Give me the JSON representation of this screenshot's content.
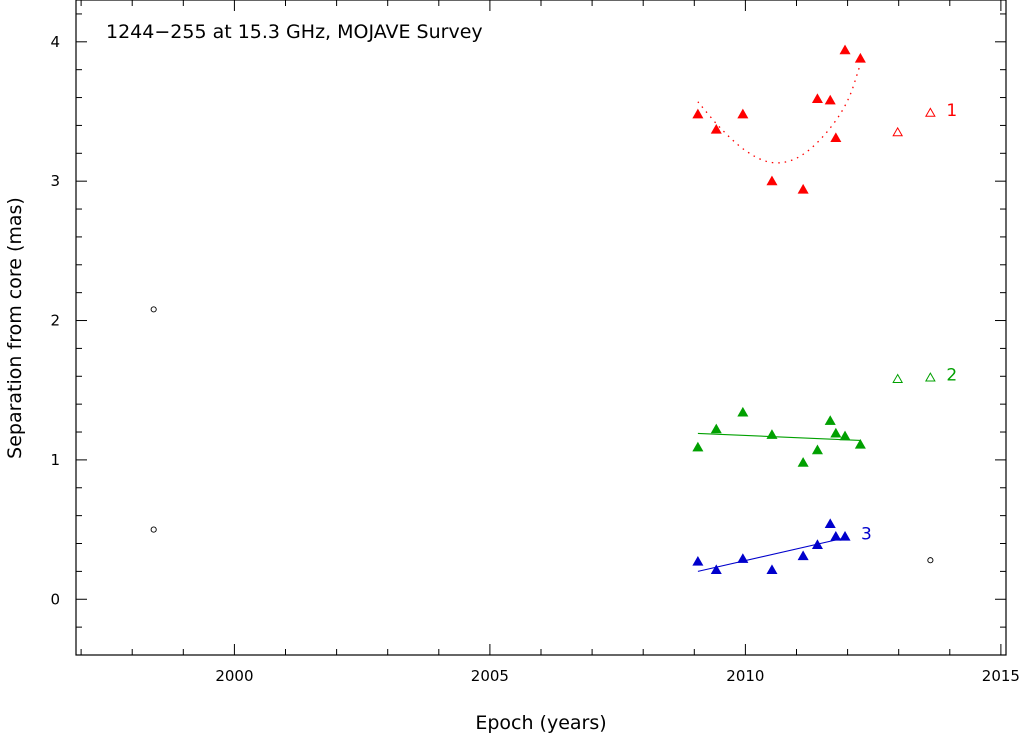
{
  "chart_data": {
    "type": "scatter",
    "title": "1244−255 at 15.3 GHz, MOJAVE Survey",
    "xlabel": "Epoch (years)",
    "ylabel": "Separation from core (mas)",
    "xlim": [
      1996.9,
      2015.1
    ],
    "ylim": [
      -0.4,
      4.3
    ],
    "x_ticks": [
      "2000",
      "2005",
      "2010",
      "2015"
    ],
    "y_ticks": [
      "0",
      "1",
      "2",
      "3",
      "4"
    ],
    "grid": false,
    "series": [
      {
        "name": "1",
        "color": "#ff0000",
        "marker": "filled-triangle",
        "points": [
          [
            2009.07,
            3.48
          ],
          [
            2009.43,
            3.37
          ],
          [
            2009.95,
            3.48
          ],
          [
            2010.52,
            3.0
          ],
          [
            2011.13,
            2.94
          ],
          [
            2011.41,
            3.59
          ],
          [
            2011.66,
            3.58
          ],
          [
            2011.77,
            3.31
          ],
          [
            2011.95,
            3.94
          ],
          [
            2012.25,
            3.88
          ]
        ],
        "open_points": [
          [
            2012.98,
            3.35
          ],
          [
            2013.62,
            3.49
          ]
        ],
        "fit": "quadratic",
        "fit_points": [
          [
            2009.07,
            3.57
          ],
          [
            2009.5,
            3.38
          ],
          [
            2010.0,
            3.21
          ],
          [
            2010.5,
            3.12
          ],
          [
            2011.0,
            3.15
          ],
          [
            2011.5,
            3.3
          ],
          [
            2012.0,
            3.55
          ],
          [
            2012.25,
            3.84
          ]
        ]
      },
      {
        "name": "2",
        "color": "#00a000",
        "marker": "filled-triangle",
        "points": [
          [
            2009.07,
            1.09
          ],
          [
            2009.43,
            1.22
          ],
          [
            2009.95,
            1.34
          ],
          [
            2010.52,
            1.18
          ],
          [
            2011.13,
            0.98
          ],
          [
            2011.41,
            1.07
          ],
          [
            2011.66,
            1.28
          ],
          [
            2011.77,
            1.19
          ],
          [
            2011.95,
            1.17
          ],
          [
            2012.25,
            1.11
          ]
        ],
        "open_points": [
          [
            2012.98,
            1.58
          ],
          [
            2013.62,
            1.59
          ]
        ],
        "fit": "linear",
        "fit_points": [
          [
            2009.07,
            1.19
          ],
          [
            2012.25,
            1.14
          ]
        ]
      },
      {
        "name": "3",
        "color": "#0000cc",
        "marker": "filled-triangle",
        "points": [
          [
            2009.07,
            0.27
          ],
          [
            2009.43,
            0.21
          ],
          [
            2009.95,
            0.29
          ],
          [
            2010.52,
            0.21
          ],
          [
            2011.13,
            0.31
          ],
          [
            2011.41,
            0.39
          ],
          [
            2011.66,
            0.54
          ],
          [
            2011.77,
            0.45
          ],
          [
            2011.95,
            0.45
          ]
        ],
        "open_points": [],
        "fit": "linear",
        "fit_points": [
          [
            2009.07,
            0.2
          ],
          [
            2011.95,
            0.44
          ]
        ]
      }
    ],
    "unassigned_points": [
      [
        1998.42,
        2.08
      ],
      [
        1998.42,
        0.5
      ],
      [
        2013.62,
        0.28
      ]
    ]
  }
}
